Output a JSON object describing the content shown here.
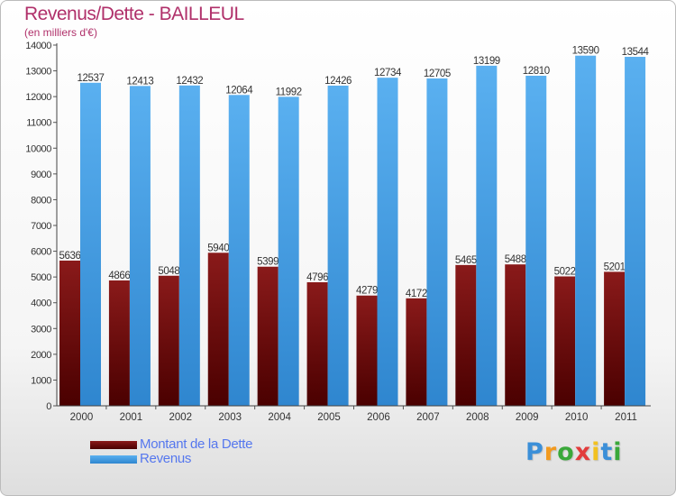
{
  "header": {
    "title": "Revenus/Dette - BAILLEUL",
    "subtitle": "(en milliers d'€)"
  },
  "chart_data": {
    "type": "bar",
    "categories": [
      "2000",
      "2001",
      "2002",
      "2003",
      "2004",
      "2005",
      "2006",
      "2007",
      "2008",
      "2009",
      "2010",
      "2011"
    ],
    "series": [
      {
        "name": "Montant de la Dette",
        "values": [
          5636,
          4866,
          5048,
          5940,
          5399,
          4796,
          4279,
          4172,
          5465,
          5488,
          5022,
          5201
        ],
        "color": "#6e0e0e"
      },
      {
        "name": "Revenus",
        "values": [
          12537,
          12413,
          12432,
          12064,
          11992,
          12426,
          12734,
          12705,
          13199,
          12810,
          13590,
          13544
        ],
        "color": "#4aa3e8"
      }
    ],
    "ylim": [
      0,
      14000
    ],
    "yticks": [
      0,
      1000,
      2000,
      3000,
      4000,
      5000,
      6000,
      7000,
      8000,
      9000,
      10000,
      11000,
      12000,
      13000,
      14000
    ],
    "grid": false,
    "legend": "bottom-left"
  },
  "branding": {
    "logo_letters": [
      "P",
      "r",
      "o",
      "x",
      "i",
      "t",
      "i"
    ],
    "logo_colors": [
      "#3b8fd8",
      "#f29a1f",
      "#3aa83a",
      "#e23b3b",
      "#f2c11f",
      "#3b8fd8",
      "#3aa83a"
    ]
  }
}
